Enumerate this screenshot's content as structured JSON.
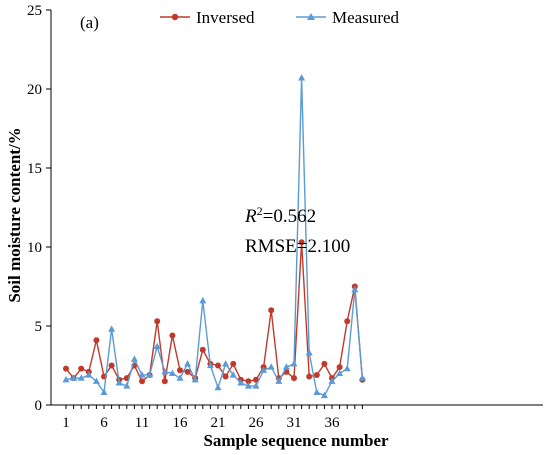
{
  "chart_data": {
    "type": "line",
    "panel_label": "(a)",
    "xlabel": "Sample sequence number",
    "ylabel": "Soil moisture content/%",
    "ylim": [
      0,
      25
    ],
    "yticks": [
      0,
      5,
      10,
      15,
      20,
      25
    ],
    "xlim": [
      1,
      40
    ],
    "xticks": [
      1,
      6,
      11,
      16,
      21,
      26,
      31,
      36
    ],
    "grid": false,
    "legend_position": "top",
    "x": [
      1,
      2,
      3,
      4,
      5,
      6,
      7,
      8,
      9,
      10,
      11,
      12,
      13,
      14,
      15,
      16,
      17,
      18,
      19,
      20,
      21,
      22,
      23,
      24,
      25,
      26,
      27,
      28,
      29,
      30,
      31,
      32,
      33,
      34,
      35,
      36,
      37,
      38,
      39,
      40
    ],
    "series": [
      {
        "name": "Inversed",
        "color": "#c0392b",
        "marker": "circle",
        "values": [
          2.3,
          1.7,
          2.3,
          2.1,
          4.1,
          1.8,
          2.5,
          1.6,
          1.7,
          2.5,
          1.5,
          1.9,
          5.3,
          1.5,
          4.4,
          2.2,
          2.1,
          1.7,
          3.5,
          2.6,
          2.5,
          1.8,
          2.6,
          1.6,
          1.5,
          1.6,
          2.4,
          6.0,
          1.7,
          2.1,
          1.7,
          10.3,
          1.8,
          1.9,
          2.6,
          1.7,
          2.4,
          5.3,
          7.5,
          1.6
        ]
      },
      {
        "name": "Measured",
        "color": "#5b9bd5",
        "marker": "triangle",
        "values": [
          1.6,
          1.7,
          1.7,
          1.9,
          1.5,
          0.8,
          4.8,
          1.4,
          1.2,
          2.9,
          1.9,
          1.9,
          3.7,
          2.1,
          2.0,
          1.7,
          2.6,
          1.6,
          6.6,
          2.5,
          1.1,
          2.6,
          1.9,
          1.4,
          1.2,
          1.2,
          2.2,
          2.4,
          1.5,
          2.4,
          2.6,
          20.7,
          3.3,
          0.8,
          0.6,
          1.5,
          2.0,
          2.3,
          7.3,
          1.7
        ]
      }
    ],
    "annotations": {
      "r2_prefix": "R",
      "r2_sup": "2",
      "r2_value": "=0.562",
      "rmse": "RMSE=2.100"
    }
  }
}
